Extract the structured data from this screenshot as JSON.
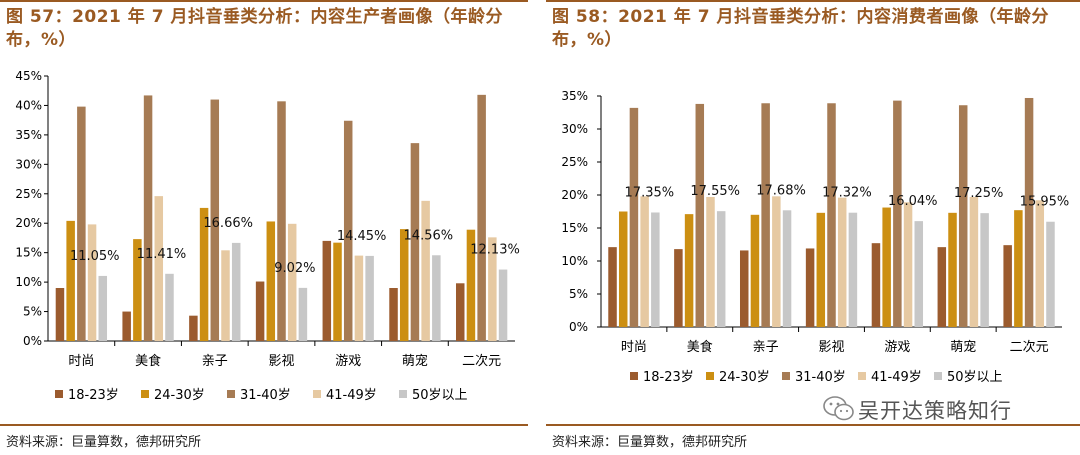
{
  "colors": {
    "accent": "#9a5a22",
    "series": [
      "#9b5b2e",
      "#cc8f12",
      "#a67b54",
      "#e6c9a2",
      "#c7c7c7"
    ]
  },
  "charts": [
    {
      "title": "图 57：2021 年 7 月抖音垂类分析：内容生产者画像（年龄分布，%）",
      "source": "资料来源：巨量算数，德邦研究所"
    },
    {
      "title": "图 58：2021 年 7 月抖音垂类分析：内容消费者画像（年龄分布，%）",
      "source": "资料来源：巨量算数，德邦研究所"
    }
  ],
  "watermark": {
    "text": "吴开达策略知行",
    "icon": "wechat-icon"
  },
  "chart_data": [
    {
      "type": "bar",
      "title": "图 57：2021 年 7 月抖音垂类分析：内容生产者画像（年龄分布，%）",
      "categories": [
        "时尚",
        "美食",
        "亲子",
        "影视",
        "游戏",
        "萌宠",
        "二次元"
      ],
      "series": [
        {
          "name": "18-23岁",
          "values": [
            9.0,
            5.0,
            4.3,
            10.1,
            17.0,
            9.0,
            9.8
          ]
        },
        {
          "name": "24-30岁",
          "values": [
            20.4,
            17.3,
            22.6,
            20.3,
            16.7,
            19.0,
            18.9
          ]
        },
        {
          "name": "31-40岁",
          "values": [
            39.8,
            41.7,
            41.0,
            40.7,
            37.4,
            33.6,
            41.8
          ]
        },
        {
          "name": "41-49岁",
          "values": [
            19.8,
            24.6,
            15.4,
            19.9,
            14.5,
            23.8,
            17.6
          ]
        },
        {
          "name": "50岁以上",
          "values": [
            11.05,
            11.41,
            16.66,
            9.02,
            14.45,
            14.56,
            12.13
          ]
        }
      ],
      "data_labels": [
        "11.05%",
        "11.41%",
        "16.66%",
        "9.02%",
        "14.45%",
        "14.56%",
        "12.13%"
      ],
      "yticks": [
        "0%",
        "5%",
        "10%",
        "15%",
        "20%",
        "25%",
        "30%",
        "35%",
        "40%",
        "45%"
      ],
      "ylim": [
        0,
        45
      ],
      "grid": false,
      "legend": "bottom"
    },
    {
      "type": "bar",
      "title": "图 58：2021 年 7 月抖音垂类分析：内容消费者画像（年龄分布，%）",
      "categories": [
        "时尚",
        "美食",
        "亲子",
        "影视",
        "游戏",
        "萌宠",
        "二次元"
      ],
      "series": [
        {
          "name": "18-23岁",
          "values": [
            12.1,
            11.8,
            11.6,
            11.9,
            12.7,
            12.1,
            12.4
          ]
        },
        {
          "name": "24-30岁",
          "values": [
            17.5,
            17.1,
            17.0,
            17.3,
            18.1,
            17.3,
            17.7
          ]
        },
        {
          "name": "31-40岁",
          "values": [
            33.2,
            33.8,
            33.9,
            33.9,
            34.3,
            33.6,
            34.7
          ]
        },
        {
          "name": "41-49岁",
          "values": [
            19.8,
            19.7,
            19.8,
            19.6,
            18.9,
            19.7,
            19.2
          ]
        },
        {
          "name": "50岁以上",
          "values": [
            17.35,
            17.55,
            17.68,
            17.32,
            16.04,
            17.25,
            15.95
          ]
        }
      ],
      "data_labels": [
        "17.35%",
        "17.55%",
        "17.68%",
        "17.32%",
        "16.04%",
        "17.25%",
        "15.95%"
      ],
      "yticks": [
        "0%",
        "5%",
        "10%",
        "15%",
        "20%",
        "25%",
        "30%",
        "35%"
      ],
      "ylim": [
        0,
        35
      ],
      "grid": false,
      "legend": "bottom"
    }
  ]
}
